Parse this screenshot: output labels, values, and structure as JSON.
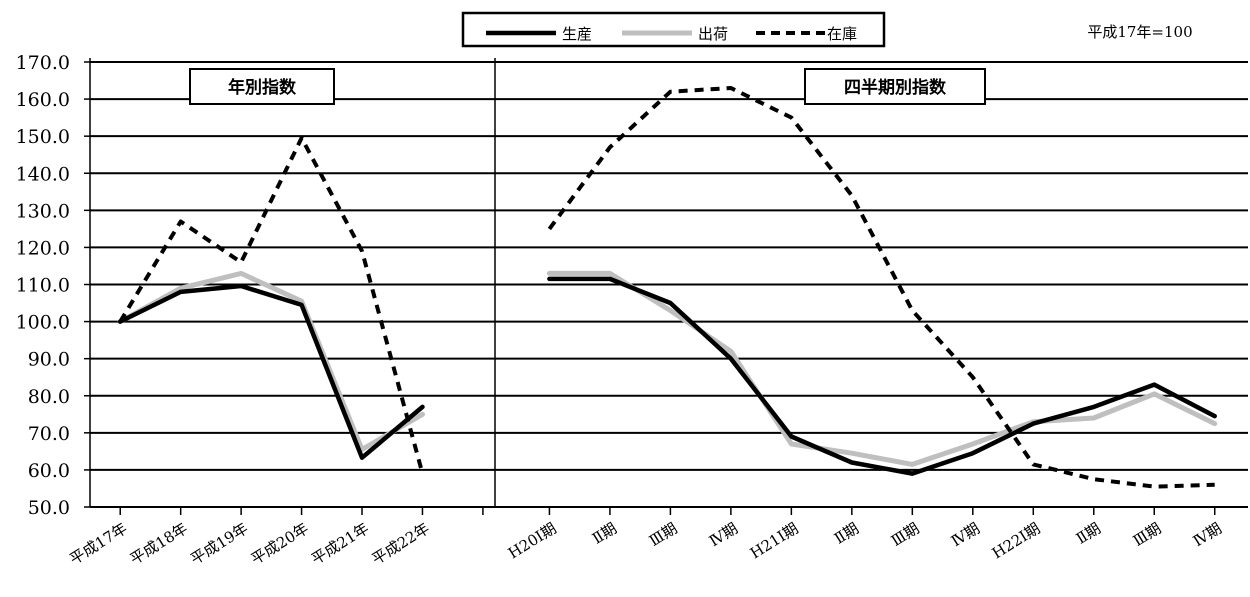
{
  "note": "平成17年=100",
  "chart_data": {
    "type": "line",
    "ylim": [
      50,
      170
    ],
    "ytick_step": 10,
    "yticks": [
      "170.0",
      "160.0",
      "150.0",
      "140.0",
      "130.0",
      "120.0",
      "110.0",
      "100.0",
      "90.0",
      "80.0",
      "70.0",
      "60.0",
      "50.0"
    ],
    "grid": true,
    "legend_position": "top-center",
    "legend": [
      {
        "name": "生産",
        "color": "#000000",
        "style": "solid"
      },
      {
        "name": "出荷",
        "color": "#bfbfbf",
        "style": "solid"
      },
      {
        "name": "在庫",
        "color": "#000000",
        "style": "dashed"
      }
    ],
    "panels": [
      {
        "label": "年別指数",
        "categories": [
          "平成17年",
          "平成18年",
          "平成19年",
          "平成20年",
          "平成21年",
          "平成22年"
        ],
        "series": [
          {
            "name": "生産",
            "values": [
              100.0,
              108.0,
              109.6,
              104.5,
              63.3,
              77.0
            ]
          },
          {
            "name": "出荷",
            "values": [
              100.0,
              109.0,
              113.0,
              105.5,
              65.5,
              75.0
            ]
          },
          {
            "name": "在庫",
            "values": [
              100.0,
              127.0,
              116.0,
              149.5,
              119.0,
              59.0
            ]
          }
        ]
      },
      {
        "label": "四半期別指数",
        "categories": [
          "H20Ⅰ期",
          "Ⅱ期",
          "Ⅲ期",
          "Ⅳ期",
          "H21Ⅰ期",
          "Ⅱ期",
          "Ⅲ期",
          "Ⅳ期",
          "H22Ⅰ期",
          "Ⅱ期",
          "Ⅲ期",
          "Ⅳ期"
        ],
        "series": [
          {
            "name": "生産",
            "values": [
              111.5,
              111.5,
              105.0,
              90.0,
              69.0,
              62.0,
              59.0,
              64.5,
              72.5,
              77.0,
              83.0,
              74.5
            ]
          },
          {
            "name": "出荷",
            "values": [
              113.0,
              113.0,
              103.0,
              92.0,
              67.0,
              64.5,
              61.5,
              67.0,
              73.0,
              74.0,
              80.5,
              72.5
            ]
          },
          {
            "name": "在庫",
            "values": [
              125.0,
              147.0,
              162.0,
              163.0,
              155.0,
              134.0,
              103.0,
              85.0,
              61.5,
              57.5,
              55.5,
              56.0
            ]
          }
        ]
      }
    ]
  }
}
